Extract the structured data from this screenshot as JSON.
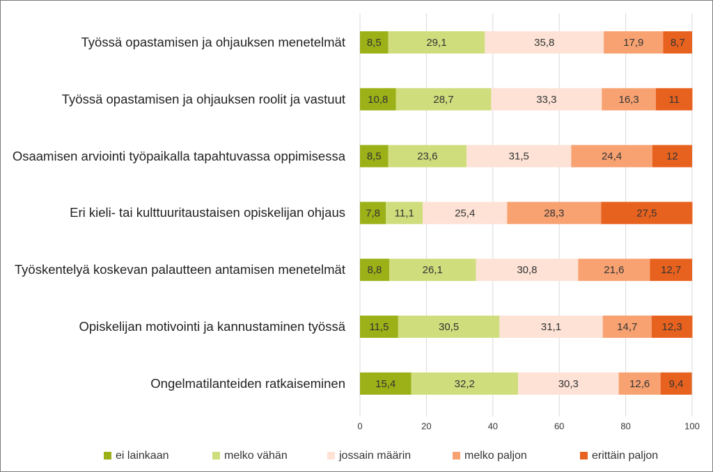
{
  "chart_data": {
    "type": "stacked-barh",
    "categories": [
      "Työssä opastamisen ja ohjauksen menetelmät",
      "Työssä opastamisen ja ohjauksen roolit ja vastuut",
      "Osaamisen arviointi työpaikalla tapahtuvassa oppimisessa",
      "Eri kieli- tai kulttuuritaustaisen opiskelijan ohjaus",
      "Työskentelyä koskevan palautteen antamisen menetelmät",
      "Opiskelijan motivointi ja kannustaminen työssä",
      "Ongelmatilanteiden ratkaiseminen"
    ],
    "series": [
      {
        "name": "ei lainkaan",
        "color": "#9bb117",
        "values": [
          8.5,
          10.8,
          8.5,
          7.8,
          8.8,
          11.5,
          15.4
        ],
        "value_labels": [
          "8,5",
          "10,8",
          "8,5",
          "7,8",
          "8,8",
          "11,5",
          "15,4"
        ]
      },
      {
        "name": "melko vähän",
        "color": "#cfdd7c",
        "values": [
          29.1,
          28.7,
          23.6,
          11.1,
          26.1,
          30.5,
          32.2
        ],
        "value_labels": [
          "29,1",
          "28,7",
          "23,6",
          "11,1",
          "26,1",
          "30,5",
          "32,2"
        ]
      },
      {
        "name": "jossain määrin",
        "color": "#fde2d5",
        "values": [
          35.8,
          33.3,
          31.5,
          25.4,
          30.8,
          31.1,
          30.3
        ],
        "value_labels": [
          "35,8",
          "33,3",
          "31,5",
          "25,4",
          "30,8",
          "31,1",
          "30,3"
        ]
      },
      {
        "name": "melko paljon",
        "color": "#f8a272",
        "values": [
          17.9,
          16.3,
          24.4,
          28.3,
          21.6,
          14.7,
          12.6
        ],
        "value_labels": [
          "17,9",
          "16,3",
          "24,4",
          "28,3",
          "21,6",
          "14,7",
          "12,6"
        ]
      },
      {
        "name": "erittäin paljon",
        "color": "#e8621f",
        "values": [
          8.7,
          11,
          12,
          27.5,
          12.7,
          12.3,
          9.4
        ],
        "value_labels": [
          "8,7",
          "11",
          "12",
          "27,5",
          "12,7",
          "12,3",
          "9,4"
        ]
      }
    ],
    "xlim": [
      0,
      100
    ],
    "xticks": [
      0,
      20,
      40,
      60,
      80,
      100
    ],
    "grid": true,
    "legend": "bottom"
  }
}
